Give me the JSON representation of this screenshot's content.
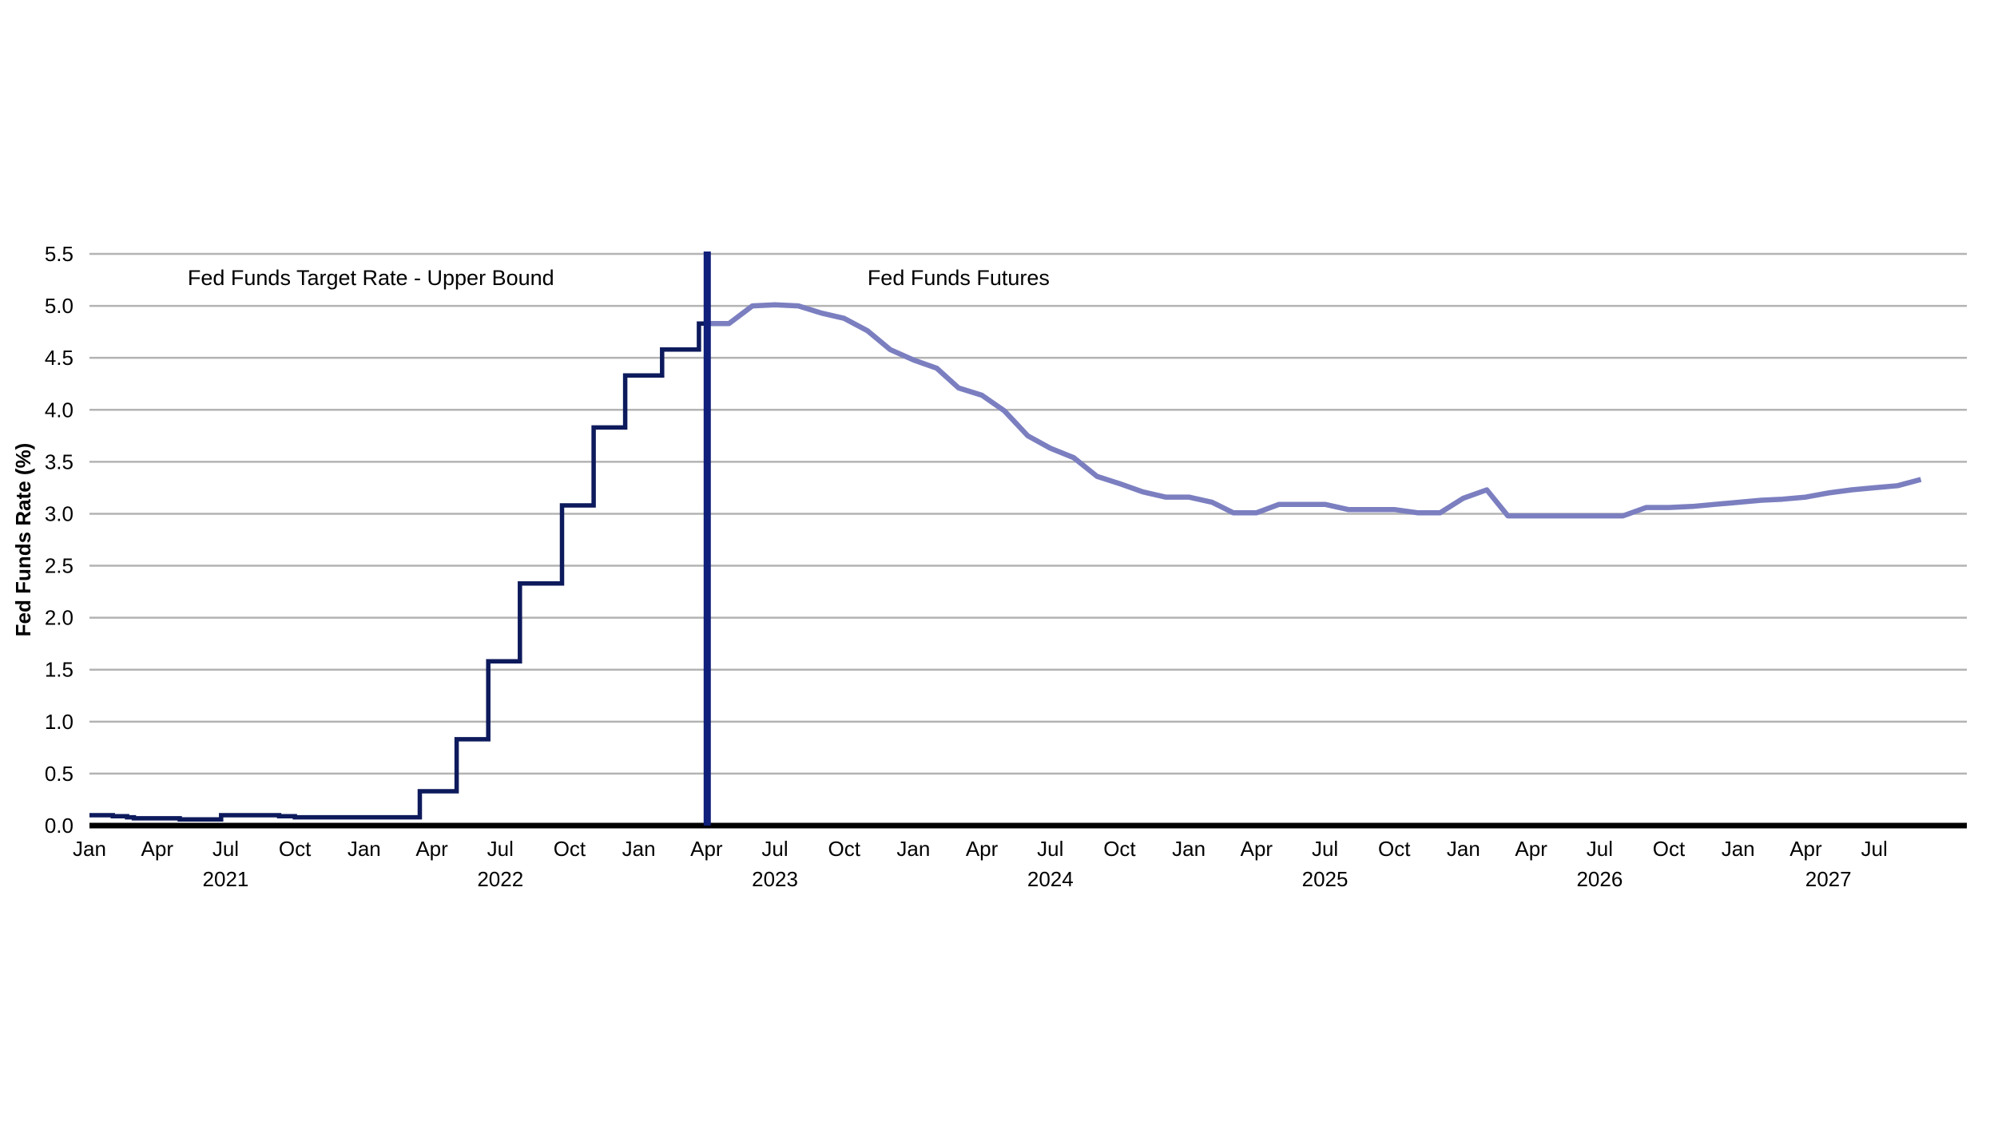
{
  "chart_data": {
    "type": "line",
    "title": "",
    "xlabel": "",
    "ylabel": "Fed Funds Rate (%)",
    "ylim": [
      0,
      5.5
    ],
    "yticks": [
      "0.0",
      "0.5",
      "1.0",
      "1.5",
      "2.0",
      "2.5",
      "3.0",
      "3.5",
      "4.0",
      "4.5",
      "5.0",
      "5.5"
    ],
    "xlim": [
      "2021-01",
      "2027-11"
    ],
    "x_month_ticks": [
      {
        "date": "2021-01",
        "label": "Jan"
      },
      {
        "date": "2021-04",
        "label": "Apr"
      },
      {
        "date": "2021-07",
        "label": "Jul"
      },
      {
        "date": "2021-10",
        "label": "Oct"
      },
      {
        "date": "2022-01",
        "label": "Jan"
      },
      {
        "date": "2022-04",
        "label": "Apr"
      },
      {
        "date": "2022-07",
        "label": "Jul"
      },
      {
        "date": "2022-10",
        "label": "Oct"
      },
      {
        "date": "2023-01",
        "label": "Jan"
      },
      {
        "date": "2023-04",
        "label": "Apr"
      },
      {
        "date": "2023-07",
        "label": "Jul"
      },
      {
        "date": "2023-10",
        "label": "Oct"
      },
      {
        "date": "2024-01",
        "label": "Jan"
      },
      {
        "date": "2024-04",
        "label": "Apr"
      },
      {
        "date": "2024-07",
        "label": "Jul"
      },
      {
        "date": "2024-10",
        "label": "Oct"
      },
      {
        "date": "2025-01",
        "label": "Jan"
      },
      {
        "date": "2025-04",
        "label": "Apr"
      },
      {
        "date": "2025-07",
        "label": "Jul"
      },
      {
        "date": "2025-10",
        "label": "Oct"
      },
      {
        "date": "2026-01",
        "label": "Jan"
      },
      {
        "date": "2026-04",
        "label": "Apr"
      },
      {
        "date": "2026-07",
        "label": "Jul"
      },
      {
        "date": "2026-10",
        "label": "Oct"
      },
      {
        "date": "2027-01",
        "label": "Jan"
      },
      {
        "date": "2027-04",
        "label": "Apr"
      },
      {
        "date": "2027-07",
        "label": "Jul"
      }
    ],
    "x_year_labels": [
      {
        "date": "2021-07",
        "label": "2021"
      },
      {
        "date": "2022-07",
        "label": "2022"
      },
      {
        "date": "2023-07",
        "label": "2023"
      },
      {
        "date": "2024-07",
        "label": "2024"
      },
      {
        "date": "2025-07",
        "label": "2025"
      },
      {
        "date": "2026-07",
        "label": "2026"
      },
      {
        "date": "2027-05",
        "label": "2027"
      }
    ],
    "grid": true,
    "divider": {
      "date": "2023-04-02",
      "color": "#0f1f7a"
    },
    "annotations": [
      {
        "text": "Fed Funds Target Rate - Upper Bound",
        "date": "2022-01-10",
        "y": 5.27
      },
      {
        "text": "Fed Funds Futures",
        "date": "2024-03-01",
        "y": 5.27
      }
    ],
    "series": [
      {
        "name": "Fed Funds Target Rate - Upper Bound",
        "color": "#0d1a5c",
        "step": true,
        "points": [
          [
            "2021-01-01",
            0.1
          ],
          [
            "2021-01-20",
            0.1
          ],
          [
            "2021-02-01",
            0.09
          ],
          [
            "2021-02-20",
            0.08
          ],
          [
            "2021-03-01",
            0.07
          ],
          [
            "2021-04-20",
            0.07
          ],
          [
            "2021-05-01",
            0.06
          ],
          [
            "2021-06-01",
            0.06
          ],
          [
            "2021-06-25",
            0.1
          ],
          [
            "2021-08-25",
            0.1
          ],
          [
            "2021-09-10",
            0.09
          ],
          [
            "2021-10-01",
            0.08
          ],
          [
            "2022-03-16",
            0.33
          ],
          [
            "2022-05-04",
            0.83
          ],
          [
            "2022-06-15",
            1.58
          ],
          [
            "2022-07-27",
            2.33
          ],
          [
            "2022-09-21",
            3.08
          ],
          [
            "2022-11-02",
            3.83
          ],
          [
            "2022-12-14",
            4.33
          ],
          [
            "2023-02-01",
            4.58
          ],
          [
            "2023-03-22",
            4.83
          ],
          [
            "2023-04-02",
            4.83
          ]
        ]
      },
      {
        "name": "Fed Funds Futures",
        "color": "#7b7fc0",
        "step": false,
        "points": [
          [
            "2023-04-02",
            4.83
          ],
          [
            "2023-05-01",
            4.83
          ],
          [
            "2023-06-01",
            5.0
          ],
          [
            "2023-07-01",
            5.01
          ],
          [
            "2023-08-01",
            5.0
          ],
          [
            "2023-09-01",
            4.93
          ],
          [
            "2023-10-01",
            4.88
          ],
          [
            "2023-11-01",
            4.76
          ],
          [
            "2023-12-01",
            4.58
          ],
          [
            "2024-01-01",
            4.48
          ],
          [
            "2024-02-01",
            4.4
          ],
          [
            "2024-03-01",
            4.21
          ],
          [
            "2024-04-01",
            4.14
          ],
          [
            "2024-05-01",
            3.99
          ],
          [
            "2024-06-01",
            3.75
          ],
          [
            "2024-07-01",
            3.63
          ],
          [
            "2024-08-01",
            3.54
          ],
          [
            "2024-09-01",
            3.36
          ],
          [
            "2024-10-01",
            3.29
          ],
          [
            "2024-11-01",
            3.21
          ],
          [
            "2024-12-01",
            3.16
          ],
          [
            "2025-01-01",
            3.16
          ],
          [
            "2025-02-01",
            3.11
          ],
          [
            "2025-03-01",
            3.01
          ],
          [
            "2025-04-01",
            3.01
          ],
          [
            "2025-05-01",
            3.09
          ],
          [
            "2025-06-01",
            3.09
          ],
          [
            "2025-07-01",
            3.09
          ],
          [
            "2025-08-01",
            3.04
          ],
          [
            "2025-09-01",
            3.04
          ],
          [
            "2025-10-01",
            3.04
          ],
          [
            "2025-11-01",
            3.01
          ],
          [
            "2025-12-01",
            3.01
          ],
          [
            "2026-01-01",
            3.15
          ],
          [
            "2026-02-01",
            3.23
          ],
          [
            "2026-03-01",
            2.98
          ],
          [
            "2026-04-01",
            2.98
          ],
          [
            "2026-05-01",
            2.98
          ],
          [
            "2026-06-01",
            2.98
          ],
          [
            "2026-07-01",
            2.98
          ],
          [
            "2026-08-01",
            2.98
          ],
          [
            "2026-09-01",
            3.06
          ],
          [
            "2026-10-01",
            3.06
          ],
          [
            "2026-11-01",
            3.07
          ],
          [
            "2026-12-01",
            3.09
          ],
          [
            "2027-01-01",
            3.11
          ],
          [
            "2027-02-01",
            3.13
          ],
          [
            "2027-03-01",
            3.14
          ],
          [
            "2027-04-01",
            3.16
          ],
          [
            "2027-05-01",
            3.2
          ],
          [
            "2027-06-01",
            3.23
          ],
          [
            "2027-07-01",
            3.25
          ],
          [
            "2027-08-01",
            3.27
          ],
          [
            "2027-09-01",
            3.33
          ]
        ]
      }
    ]
  }
}
